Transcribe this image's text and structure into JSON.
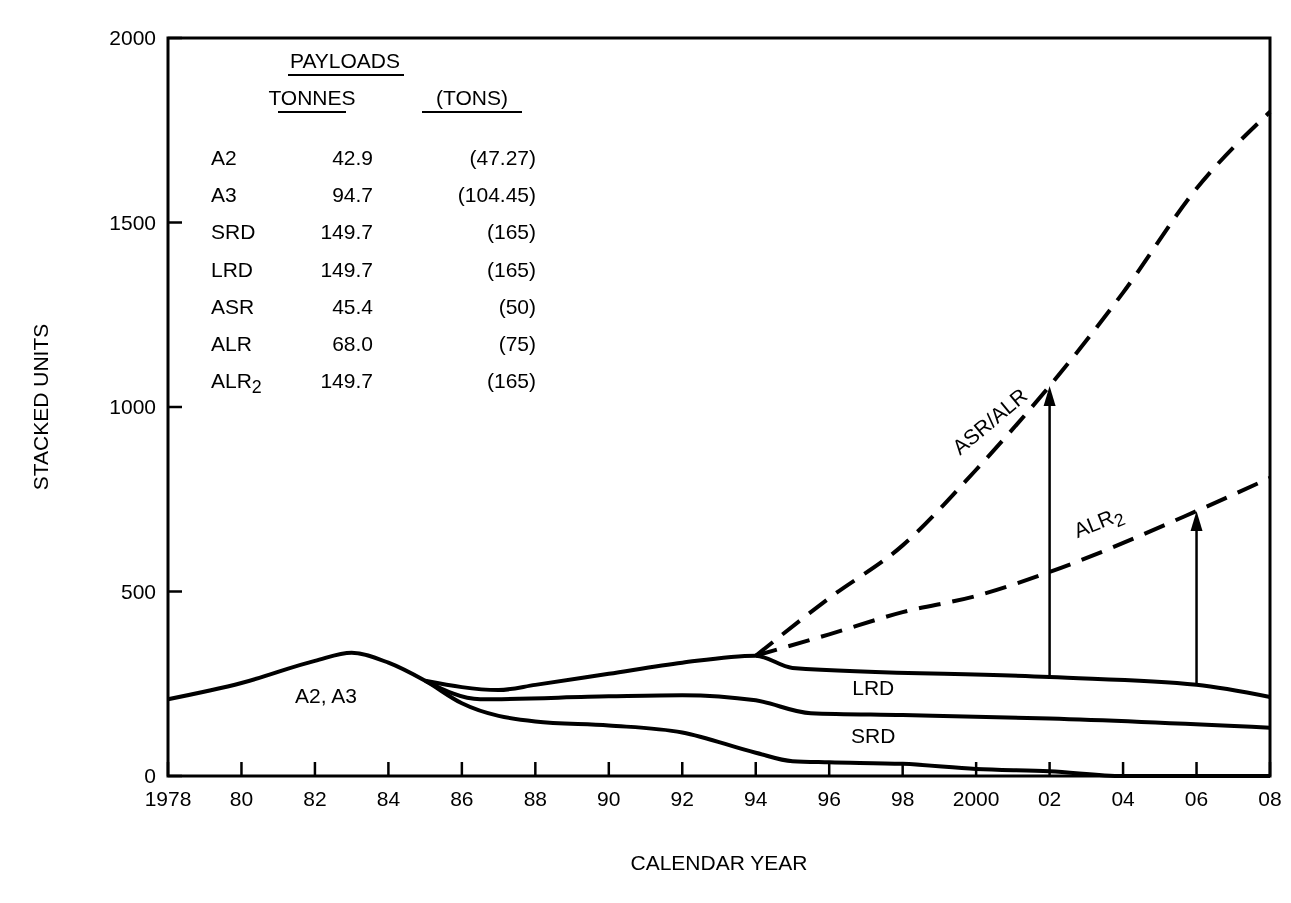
{
  "chart_data": {
    "type": "line",
    "xlabel": "CALENDAR YEAR",
    "ylabel": "STACKED UNITS",
    "xlim": [
      1978,
      2008
    ],
    "ylim": [
      0,
      2000
    ],
    "xticks": [
      1978,
      {
        "value": 1980,
        "label": "80"
      },
      {
        "value": 1982,
        "label": "82"
      },
      {
        "value": 1984,
        "label": "84"
      },
      {
        "value": 1986,
        "label": "86"
      },
      {
        "value": 1988,
        "label": "88"
      },
      {
        "value": 1990,
        "label": "90"
      },
      {
        "value": 1992,
        "label": "92"
      },
      {
        "value": 1994,
        "label": "94"
      },
      {
        "value": 1996,
        "label": "96"
      },
      {
        "value": 1998,
        "label": "98"
      },
      2000,
      {
        "value": 2002,
        "label": "02"
      },
      {
        "value": 2004,
        "label": "04"
      },
      {
        "value": 2006,
        "label": "06"
      },
      {
        "value": 2008,
        "label": "08"
      }
    ],
    "yticks": [
      0,
      500,
      1000,
      1500,
      2000
    ],
    "grid": false,
    "marker": "none",
    "series": [
      {
        "name": "A2, A3",
        "color": "#000000",
        "line_style": "solid",
        "x": [
          1978,
          1980,
          1982,
          1983,
          1984,
          1985,
          1986,
          1988,
          1990,
          1992,
          1994,
          1995,
          1996,
          1998,
          2000,
          2002,
          2004,
          2008
        ],
        "values": [
          208,
          252,
          312,
          334,
          307,
          258,
          197,
          148,
          137,
          118,
          63,
          40,
          37,
          33,
          19,
          13,
          0,
          0
        ]
      },
      {
        "name": "SRD",
        "color": "#000000",
        "line_style": "solid",
        "x": [
          1985,
          1986.5,
          1990,
          1992,
          1994,
          1995.5,
          1998,
          2002,
          2008
        ],
        "values": [
          258,
          208,
          216,
          219,
          205,
          170,
          165,
          156,
          131
        ]
      },
      {
        "name": "LRD",
        "color": "#000000",
        "line_style": "solid",
        "x": [
          1985,
          1987,
          1988,
          1990,
          1992,
          1994,
          1995,
          2002,
          2006,
          2008
        ],
        "values": [
          258,
          233,
          247,
          277,
          307,
          326,
          293,
          268,
          247,
          214
        ]
      },
      {
        "name": "ASR/ALR",
        "color": "#000000",
        "line_style": "dashed",
        "x": [
          1994,
          1996,
          1998,
          2000,
          2002,
          2004,
          2006,
          2008
        ],
        "values": [
          326,
          482,
          625,
          830,
          1057,
          1310,
          1592,
          1800
        ]
      },
      {
        "name": "ALR$_{2}$",
        "color": "#000000",
        "line_style": "dashed",
        "x": [
          1994,
          1996,
          1998,
          2000,
          2002,
          2006,
          2008
        ],
        "values": [
          326,
          384,
          444,
          488,
          553,
          718,
          808
        ]
      }
    ],
    "annotations": [
      "PAYLOADS",
      "TONNES",
      "(TONS)",
      "A2",
      "42.9",
      "(47.27)",
      "A3",
      "94.7",
      "(104.45)",
      "SRD",
      "149.7",
      "(165)",
      "LRD",
      "149.7",
      "(165)",
      "ASR",
      "45.4",
      "(50)",
      "ALR",
      "68.0",
      "(75)",
      "ALR$_{2}$",
      "149.7",
      "(165)"
    ]
  }
}
